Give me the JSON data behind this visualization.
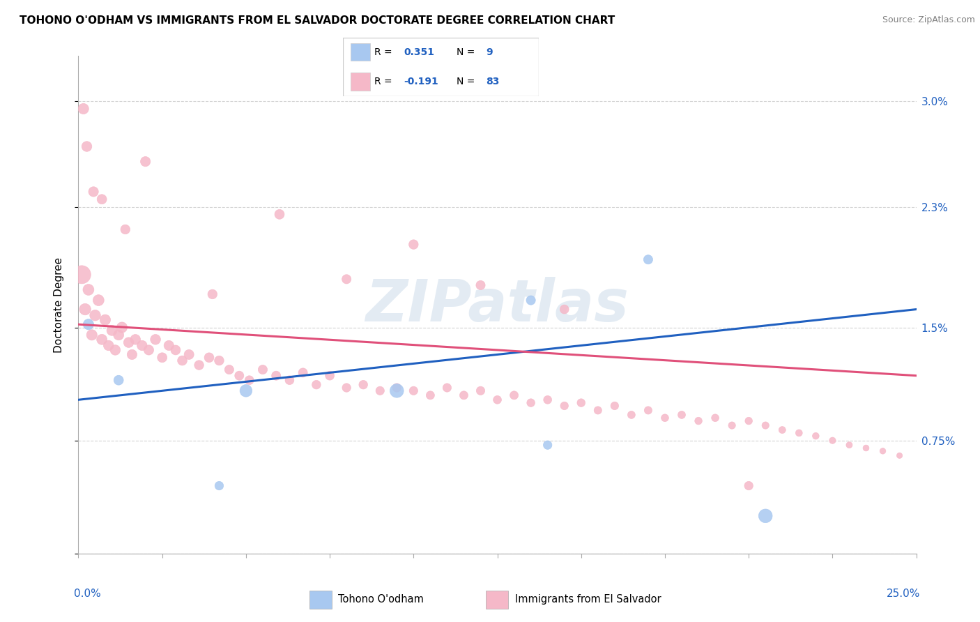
{
  "title": "TOHONO O'ODHAM VS IMMIGRANTS FROM EL SALVADOR DOCTORATE DEGREE CORRELATION CHART",
  "source": "Source: ZipAtlas.com",
  "ylabel": "Doctorate Degree",
  "xmin": 0.0,
  "xmax": 25.0,
  "ymin": 0.0,
  "ymax": 3.3,
  "ytick_vals": [
    0.0,
    0.75,
    1.5,
    2.3,
    3.0
  ],
  "ytick_labels": [
    "",
    "0.75%",
    "1.5%",
    "2.3%",
    "3.0%"
  ],
  "blue_R": 0.351,
  "blue_N": 9,
  "pink_R": -0.191,
  "pink_N": 83,
  "blue_color": "#a8c8f0",
  "pink_color": "#f5b8c8",
  "blue_line_color": "#2060c0",
  "pink_line_color": "#e0507a",
  "legend_label_blue": "Tohono O'odham",
  "legend_label_pink": "Immigrants from El Salvador",
  "watermark": "ZIPatlas",
  "blue_line_y0": 1.02,
  "blue_line_y1": 1.62,
  "pink_line_y0": 1.52,
  "pink_line_y1": 1.18,
  "blue_scatter_x": [
    0.3,
    1.2,
    4.2,
    5.0,
    9.5,
    13.5,
    14.0,
    17.0,
    20.5
  ],
  "blue_scatter_y": [
    1.52,
    1.15,
    0.45,
    1.08,
    1.08,
    1.68,
    0.72,
    1.95,
    0.25
  ],
  "blue_scatter_s": [
    120,
    100,
    80,
    160,
    200,
    90,
    80,
    90,
    200
  ],
  "pink_scatter_x": [
    0.1,
    0.2,
    0.3,
    0.4,
    0.5,
    0.6,
    0.7,
    0.8,
    0.9,
    1.0,
    1.1,
    1.2,
    1.3,
    1.5,
    1.6,
    1.7,
    1.9,
    2.1,
    2.3,
    2.5,
    2.7,
    2.9,
    3.1,
    3.3,
    3.6,
    3.9,
    4.2,
    4.5,
    4.8,
    5.1,
    5.5,
    5.9,
    6.3,
    6.7,
    7.1,
    7.5,
    8.0,
    8.5,
    9.0,
    9.5,
    10.0,
    10.5,
    11.0,
    11.5,
    12.0,
    12.5,
    13.0,
    13.5,
    14.0,
    14.5,
    15.0,
    15.5,
    16.0,
    16.5,
    17.0,
    17.5,
    18.0,
    18.5,
    19.0,
    19.5,
    20.0,
    20.5,
    21.0,
    21.5,
    22.0,
    22.5,
    23.0,
    23.5,
    24.0,
    24.5,
    0.15,
    0.25,
    0.45,
    0.7,
    1.4,
    2.0,
    4.0,
    6.0,
    8.0,
    10.0,
    12.0,
    14.5,
    20.0
  ],
  "pink_scatter_y": [
    1.85,
    1.62,
    1.75,
    1.45,
    1.58,
    1.68,
    1.42,
    1.55,
    1.38,
    1.48,
    1.35,
    1.45,
    1.5,
    1.4,
    1.32,
    1.42,
    1.38,
    1.35,
    1.42,
    1.3,
    1.38,
    1.35,
    1.28,
    1.32,
    1.25,
    1.3,
    1.28,
    1.22,
    1.18,
    1.15,
    1.22,
    1.18,
    1.15,
    1.2,
    1.12,
    1.18,
    1.1,
    1.12,
    1.08,
    1.1,
    1.08,
    1.05,
    1.1,
    1.05,
    1.08,
    1.02,
    1.05,
    1.0,
    1.02,
    0.98,
    1.0,
    0.95,
    0.98,
    0.92,
    0.95,
    0.9,
    0.92,
    0.88,
    0.9,
    0.85,
    0.88,
    0.85,
    0.82,
    0.8,
    0.78,
    0.75,
    0.72,
    0.7,
    0.68,
    0.65,
    2.95,
    2.7,
    2.4,
    2.35,
    2.15,
    2.6,
    1.72,
    2.25,
    1.82,
    2.05,
    1.78,
    1.62,
    0.45
  ],
  "pink_scatter_s": [
    350,
    140,
    130,
    120,
    125,
    130,
    115,
    120,
    110,
    115,
    110,
    115,
    120,
    110,
    105,
    110,
    108,
    105,
    110,
    100,
    105,
    100,
    98,
    102,
    95,
    98,
    95,
    90,
    88,
    85,
    90,
    88,
    85,
    88,
    82,
    85,
    80,
    82,
    78,
    80,
    78,
    75,
    78,
    75,
    78,
    72,
    75,
    70,
    72,
    68,
    70,
    65,
    68,
    62,
    65,
    60,
    62,
    58,
    60,
    55,
    58,
    55,
    52,
    50,
    48,
    45,
    42,
    40,
    38,
    35,
    120,
    110,
    105,
    100,
    95,
    105,
    95,
    100,
    90,
    95,
    90,
    85,
    80
  ]
}
